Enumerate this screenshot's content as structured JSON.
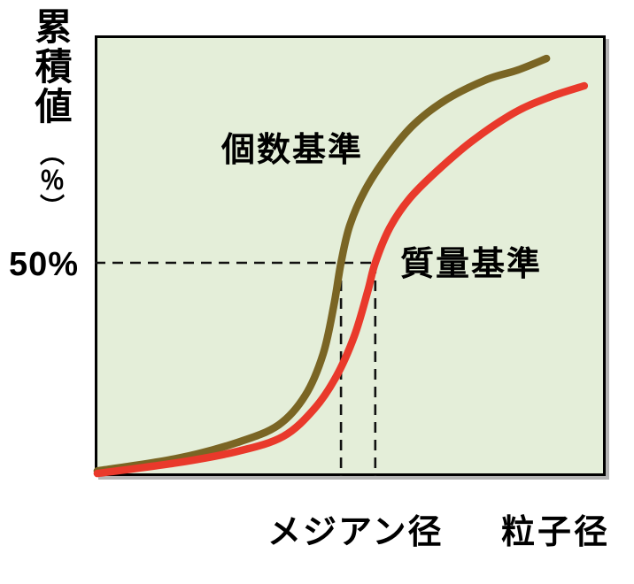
{
  "figure": {
    "y_axis_label_main": "累積値",
    "y_axis_label_unit": "（％）",
    "fifty_percent_label": "50%",
    "curve_label_number": "個数基準",
    "curve_label_mass": "質量基準",
    "x_label_median": "メジアン径",
    "x_label_particle": "粒子径"
  },
  "colors": {
    "number_curve": "#7a6524",
    "mass_curve": "#e9392b",
    "plot_background": "#e4eed9",
    "plot_border": "#000000",
    "dashed_line": "#111111"
  },
  "chart_data": {
    "type": "line",
    "title": "",
    "xlabel": "粒子径",
    "ylabel": "累積値（％）",
    "xlim": [
      0,
      100
    ],
    "ylim": [
      0,
      100
    ],
    "grid": false,
    "legend_position": "inline-annotations",
    "x_units": "particle size (unlabeled, arbitrary units)",
    "y_tick_labels": [
      "50%"
    ],
    "reference_line": {
      "y": 50,
      "label": "50%",
      "style": "dashed"
    },
    "median_annotation": {
      "label": "メジアン径",
      "number_basis_x": 48.2,
      "mass_basis_x": 54.9
    },
    "series": [
      {
        "name": "個数基準",
        "color": "#7a6524",
        "x": [
          0.5,
          16,
          28,
          36,
          41.2,
          44.7,
          46.8,
          48.2,
          49.9,
          52.9,
          57.4,
          62.6,
          69,
          76.8,
          82.8,
          88.4
        ],
        "y": [
          1.2,
          4.1,
          7.9,
          12.0,
          18.9,
          28.6,
          40.0,
          50.0,
          58.7,
          67.0,
          75.3,
          82.6,
          88.4,
          93.0,
          95.2,
          97.9
        ]
      },
      {
        "name": "質量基準",
        "color": "#e9392b",
        "x": [
          0.5,
          16,
          28,
          36.9,
          43,
          47.3,
          50.8,
          53.4,
          54.9,
          57.7,
          61.5,
          66.7,
          73.7,
          82,
          88.9,
          95.8
        ],
        "y": [
          0.6,
          3.1,
          5.8,
          9.3,
          15.8,
          23.4,
          32.8,
          43.2,
          50.0,
          58.1,
          64.9,
          71.2,
          78.4,
          85.1,
          88.8,
          91.5
        ]
      }
    ]
  }
}
